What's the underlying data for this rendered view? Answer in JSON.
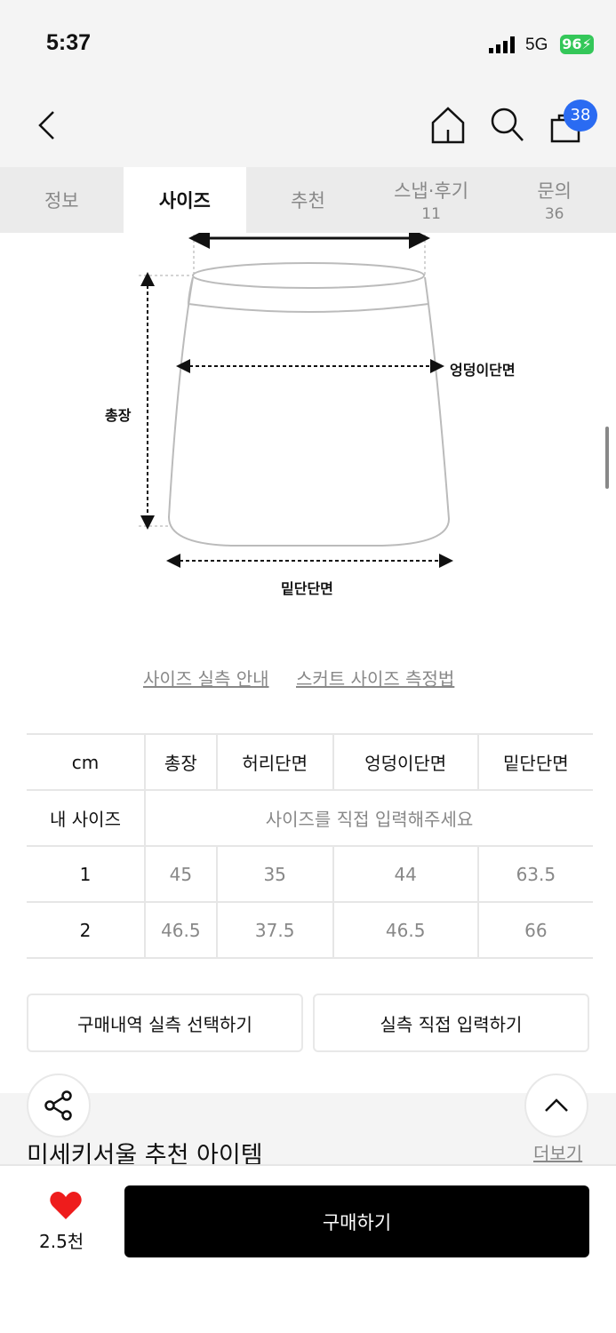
{
  "status": {
    "time": "5:37",
    "network": "5G",
    "battery": "96"
  },
  "nav": {
    "cart_count": "38"
  },
  "tabs": [
    {
      "label": "정보"
    },
    {
      "label": "사이즈"
    },
    {
      "label": "추천"
    },
    {
      "label": "스냅·후기",
      "count": "11"
    },
    {
      "label": "문의",
      "count": "36"
    }
  ],
  "diagram": {
    "length": "총장",
    "hip": "엉덩이단면",
    "hem": "밑단단면"
  },
  "links": {
    "guide": "사이즈 실측 안내",
    "measure": "스커트 사이즈 측정법"
  },
  "table": {
    "headers": [
      "cm",
      "총장",
      "허리단면",
      "엉덩이단면",
      "밑단단면"
    ],
    "my_size": {
      "label": "내 사이즈",
      "placeholder": "사이즈를 직접 입력해주세요"
    },
    "rows": [
      [
        "1",
        "45",
        "35",
        "44",
        "63.5"
      ],
      [
        "2",
        "46.5",
        "37.5",
        "46.5",
        "66"
      ]
    ]
  },
  "buttons": {
    "select": "구매내역 실측 선택하기",
    "input": "실측 직접 입력하기"
  },
  "recommend": {
    "title": "미세키서울 추천 아이템",
    "more": "더보기"
  },
  "bottom": {
    "likes": "2.5천",
    "buy": "구매하기",
    "heart_color": "#ee1c1c"
  }
}
